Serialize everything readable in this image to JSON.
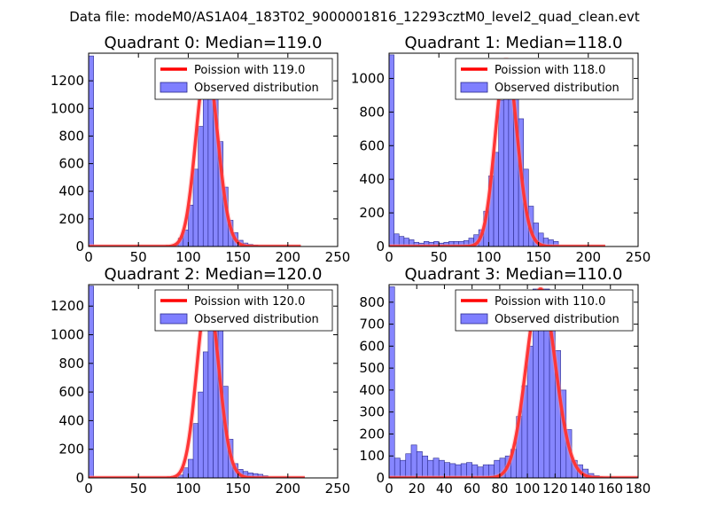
{
  "figure_title": "Data file: modeM0/AS1A04_183T02_9000001816_12293cztM0_level2_quad_clean.evt",
  "colors": {
    "bar_fill": "#7f7fff",
    "bar_stroke": "#2a2a8c",
    "poisson": "#ff0000",
    "poisson_overlay": "#ff9a9a"
  },
  "chart_data": [
    {
      "type": "bar",
      "title": "Quadrant 0: Median=119.0",
      "xlim": [
        0,
        250
      ],
      "ylim": [
        0,
        1400
      ],
      "xticks": [
        "0",
        "50",
        "100",
        "150",
        "200",
        "250"
      ],
      "yticks": [
        "0",
        "200",
        "400",
        "600",
        "800",
        "1000",
        "1200"
      ],
      "legend": [
        "Poission with 119.0",
        "Observed distribution"
      ],
      "legend_position": "top-right",
      "poisson_mean": 119.0,
      "curve_xmax": 213,
      "bar_width": 5,
      "bins": [
        0,
        85,
        90,
        95,
        100,
        105,
        110,
        115,
        120,
        125,
        130,
        135,
        140,
        145,
        150,
        155,
        160,
        165,
        170,
        175
      ],
      "values": [
        1380,
        10,
        60,
        120,
        300,
        560,
        870,
        1130,
        1320,
        1110,
        760,
        430,
        190,
        100,
        45,
        25,
        15,
        10,
        5,
        3
      ]
    },
    {
      "type": "bar",
      "title": "Quadrant 1: Median=118.0",
      "xlim": [
        0,
        250
      ],
      "ylim": [
        0,
        1150
      ],
      "xticks": [
        "0",
        "50",
        "100",
        "150",
        "200",
        "250"
      ],
      "yticks": [
        "0",
        "200",
        "400",
        "600",
        "800",
        "1000"
      ],
      "legend": [
        "Poission with 118.0",
        "Observed distribution"
      ],
      "legend_position": "top-right",
      "poisson_mean": 118.0,
      "curve_xmax": 217,
      "bar_width": 5,
      "bins": [
        0,
        5,
        10,
        15,
        20,
        25,
        30,
        35,
        40,
        45,
        50,
        55,
        60,
        65,
        70,
        75,
        80,
        85,
        90,
        95,
        100,
        105,
        110,
        115,
        120,
        125,
        130,
        135,
        140,
        145,
        150,
        155,
        160,
        165
      ],
      "values": [
        1140,
        75,
        60,
        50,
        40,
        25,
        20,
        30,
        25,
        30,
        20,
        25,
        30,
        30,
        30,
        35,
        50,
        70,
        100,
        210,
        420,
        560,
        870,
        1110,
        1100,
        1040,
        760,
        460,
        240,
        140,
        80,
        50,
        40,
        30
      ]
    },
    {
      "type": "bar",
      "title": "Quadrant 2: Median=120.0",
      "xlim": [
        0,
        250
      ],
      "ylim": [
        0,
        1350
      ],
      "xticks": [
        "0",
        "50",
        "100",
        "150",
        "200",
        "250"
      ],
      "yticks": [
        "0",
        "200",
        "400",
        "600",
        "800",
        "1000",
        "1200"
      ],
      "legend": [
        "Poission with 120.0",
        "Observed distribution"
      ],
      "legend_position": "top-right",
      "poisson_mean": 120.0,
      "curve_xmax": 217,
      "bar_width": 5,
      "bins": [
        0,
        90,
        95,
        100,
        105,
        110,
        115,
        120,
        125,
        130,
        135,
        140,
        145,
        150,
        155,
        160,
        165,
        170,
        175,
        180
      ],
      "values": [
        1340,
        20,
        70,
        130,
        380,
        600,
        880,
        1220,
        1280,
        1040,
        640,
        270,
        100,
        60,
        45,
        35,
        30,
        25,
        15,
        5
      ]
    },
    {
      "type": "bar",
      "title": "Quadrant 3: Median=110.0",
      "xlim": [
        0,
        180
      ],
      "ylim": [
        0,
        880
      ],
      "xticks": [
        "0",
        "20",
        "40",
        "60",
        "80",
        "100",
        "120",
        "140",
        "160",
        "180"
      ],
      "yticks": [
        "0",
        "100",
        "200",
        "300",
        "400",
        "500",
        "600",
        "700",
        "800"
      ],
      "legend": [
        "Poission with 110.0",
        "Observed distribution"
      ],
      "legend_position": "top-right",
      "poisson_mean": 110.0,
      "curve_xmax": 180,
      "bar_width": 4,
      "bins": [
        0,
        4,
        8,
        12,
        16,
        20,
        24,
        28,
        32,
        36,
        40,
        44,
        48,
        52,
        56,
        60,
        64,
        68,
        72,
        76,
        80,
        84,
        88,
        92,
        96,
        100,
        104,
        108,
        112,
        116,
        120,
        124,
        128,
        132,
        136,
        140,
        144,
        148,
        152
      ],
      "values": [
        870,
        90,
        80,
        110,
        150,
        120,
        100,
        80,
        90,
        80,
        70,
        65,
        60,
        65,
        70,
        60,
        50,
        60,
        60,
        80,
        90,
        100,
        130,
        280,
        420,
        600,
        860,
        860,
        860,
        720,
        580,
        400,
        220,
        80,
        60,
        40,
        20,
        10,
        5
      ]
    }
  ]
}
